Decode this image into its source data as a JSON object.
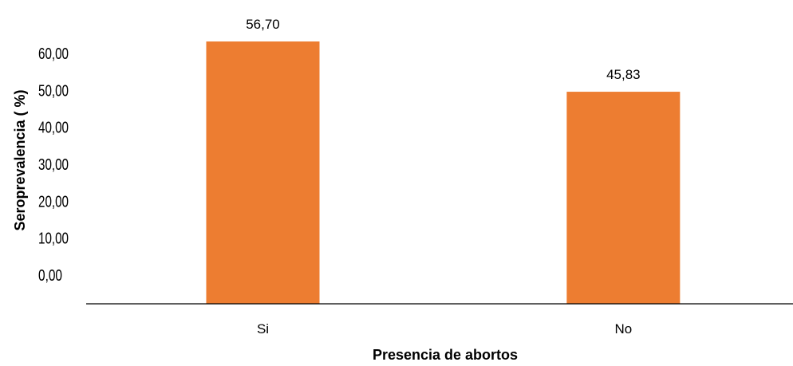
{
  "chart_data": {
    "type": "bar",
    "categories": [
      "Si",
      "No"
    ],
    "values": [
      56.7,
      45.83
    ],
    "data_labels": [
      "56,70",
      "45,83"
    ],
    "y_ticks": [
      0,
      10,
      20,
      30,
      40,
      50,
      60
    ],
    "y_tick_labels": [
      "0,00",
      "10,00",
      "20,00",
      "30,00",
      "40,00",
      "50,00",
      "60,00"
    ],
    "xlabel": "Presencia de abortos",
    "ylabel": "Seroprevalencia ( %)",
    "ylim": [
      0,
      60
    ],
    "grid": false,
    "legend": "none",
    "bar_color": "#ED7D31",
    "axis_color": "#000000"
  }
}
